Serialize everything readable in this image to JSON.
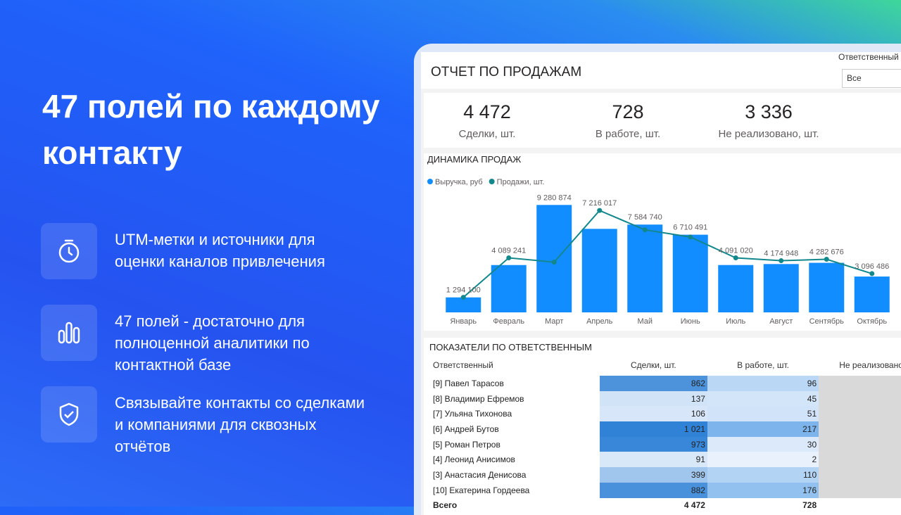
{
  "headline": "47 полей по каждому контакту",
  "features": [
    {
      "text": "UTM-метки и источники для оценки каналов привлечения"
    },
    {
      "text": "47 полей - достаточно для полноценной аналитики по контактной базе"
    },
    {
      "text": "Связывайте контакты со сделками и компаниями для сквозных отчётов"
    }
  ],
  "dashboard": {
    "title": "ОТЧЕТ ПО ПРОДАЖАМ",
    "filter_label": "Ответственный",
    "filter_value": "Все",
    "kpis": [
      {
        "value": "4 472",
        "label": "Сделки, шт."
      },
      {
        "value": "728",
        "label": "В работе, шт."
      },
      {
        "value": "3 336",
        "label": "Не реализовано, шт."
      }
    ],
    "table": {
      "title": "ПОКАЗАТЕЛИ ПО ОТВЕТСТВЕННЫМ",
      "headers": [
        "Ответственный",
        "Сделки, шт.",
        "В работе, шт.",
        "Не реализовано"
      ],
      "rows": [
        {
          "name": "[9] Павел Тарасов",
          "deals": 862,
          "in_work": 96
        },
        {
          "name": "[8] Владимир Ефремов",
          "deals": 137,
          "in_work": 45
        },
        {
          "name": "[7] Ульяна Тихонова",
          "deals": 106,
          "in_work": 51
        },
        {
          "name": "[6] Андрей Бутов",
          "deals": 1021,
          "deals_label": "1 021",
          "in_work": 217
        },
        {
          "name": "[5] Роман Петров",
          "deals": 973,
          "in_work": 30
        },
        {
          "name": "[4] Леонид Анисимов",
          "deals": 91,
          "in_work": 2
        },
        {
          "name": "[3] Анастасия Денисова",
          "deals": 399,
          "in_work": 110
        },
        {
          "name": "[10] Екатерина Гордеева",
          "deals": 882,
          "in_work": 176
        }
      ],
      "total": {
        "name": "Всего",
        "deals": 4472,
        "deals_label": "4 472",
        "in_work": 728
      }
    }
  },
  "chart_data": {
    "type": "bar-line",
    "title": "ДИНАМИКА ПРОДАЖ",
    "categories": [
      "Январь",
      "Февраль",
      "Март",
      "Апрель",
      "Май",
      "Июнь",
      "Июль",
      "Август",
      "Сентябрь",
      "Октябрь"
    ],
    "ylim": [
      0,
      9300000
    ],
    "y2lim": [
      0,
      150
    ],
    "series": [
      {
        "name": "Выручка, руб",
        "color": "#118dff",
        "values": [
          1294100,
          4089241,
          9280874,
          7216017,
          7584740,
          6710491,
          4091020,
          4174948,
          4282676,
          3096486
        ],
        "value_labels": [
          "1 294 100",
          "4 089 241",
          "9 280 874",
          "7 216 017",
          "7 584 740",
          "6 710 491",
          "4 091 020",
          "4 174 948",
          "4 282 676",
          "3 096 486"
        ]
      },
      {
        "name": "Продажи, шт.",
        "color": "#12878c",
        "axis": "y2",
        "values": [
          21,
          76,
          70,
          142,
          115,
          105,
          76,
          72,
          74,
          54
        ]
      }
    ]
  }
}
